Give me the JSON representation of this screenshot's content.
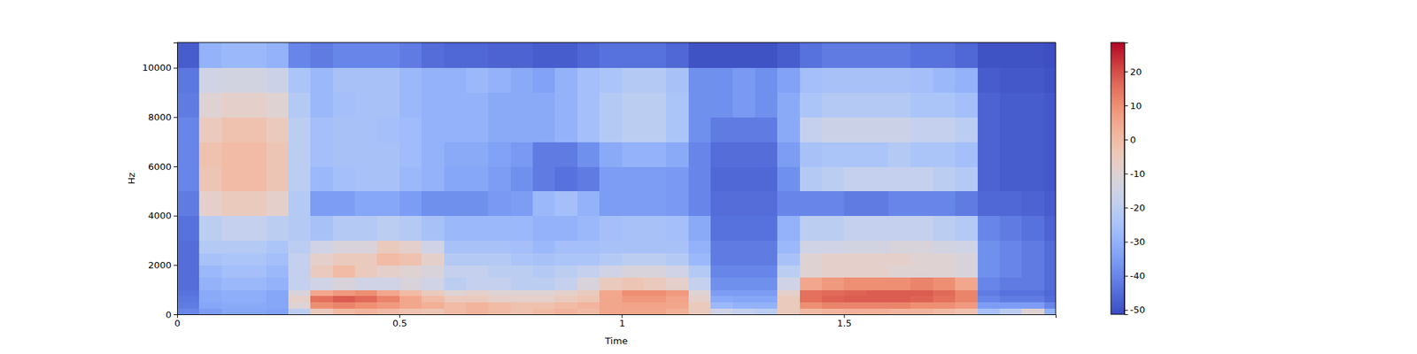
{
  "chart_data": {
    "type": "heatmap",
    "x_label": "Time",
    "y_label": "Hz",
    "xlim": [
      0,
      1.976
    ],
    "ylim": [
      0,
      11025
    ],
    "xticks": [
      0,
      0.5,
      1,
      1.5
    ],
    "yticks": [
      0,
      2000,
      4000,
      6000,
      8000,
      10000
    ],
    "x_edges": [
      0,
      0.05,
      0.1,
      0.15,
      0.2,
      0.25,
      0.3,
      0.35,
      0.4,
      0.45,
      0.5,
      0.55,
      0.6,
      0.65,
      0.7,
      0.75,
      0.8,
      0.85,
      0.9,
      0.95,
      1,
      1.05,
      1.1,
      1.15,
      1.2,
      1.25,
      1.3,
      1.35,
      1.4,
      1.45,
      1.5,
      1.55,
      1.6,
      1.65,
      1.7,
      1.75,
      1.8,
      1.85,
      1.9,
      1.95,
      1.976
    ],
    "y_edges": [
      0,
      250,
      500,
      750,
      1000,
      1500,
      2000,
      2500,
      3000,
      4000,
      5000,
      6000,
      7000,
      8000,
      9000,
      10000,
      11025
    ],
    "values": [
      [
        -40,
        -35,
        -33,
        -33,
        -34,
        -20,
        -5,
        0,
        2,
        0,
        -2,
        -3,
        0,
        2,
        0,
        -2,
        0,
        2,
        0,
        5,
        5,
        5,
        3,
        -5,
        -15,
        -18,
        -20,
        -5,
        0,
        2,
        3,
        3,
        2,
        2,
        0,
        -2,
        -25,
        -20,
        -10,
        -30
      ],
      [
        -42,
        -33,
        -32,
        -32,
        -33,
        -10,
        10,
        12,
        10,
        8,
        5,
        3,
        0,
        2,
        0,
        -2,
        -2,
        0,
        2,
        5,
        6,
        6,
        5,
        -5,
        -28,
        -30,
        -30,
        -5,
        10,
        12,
        12,
        12,
        12,
        10,
        10,
        8,
        -35,
        -35,
        -35,
        -40
      ],
      [
        -43,
        -32,
        -31,
        -31,
        -33,
        -8,
        15,
        18,
        16,
        12,
        5,
        0,
        -5,
        -5,
        -8,
        -8,
        -8,
        -5,
        -3,
        5,
        8,
        8,
        6,
        -8,
        -32,
        -33,
        -33,
        -5,
        15,
        17,
        18,
        18,
        18,
        17,
        15,
        12,
        -40,
        -42,
        -42,
        -45
      ],
      [
        -44,
        -32,
        -31,
        -31,
        -33,
        -12,
        5,
        8,
        10,
        5,
        0,
        -5,
        -10,
        -8,
        -10,
        -10,
        -10,
        -8,
        -5,
        5,
        10,
        10,
        8,
        -10,
        -35,
        -35,
        -35,
        -8,
        15,
        16,
        17,
        18,
        18,
        18,
        16,
        12,
        -42,
        -44,
        -44,
        -46
      ],
      [
        -45,
        -30,
        -28,
        -28,
        -30,
        -18,
        -15,
        -12,
        -15,
        -15,
        -12,
        -15,
        -20,
        -18,
        -18,
        -20,
        -20,
        -18,
        -12,
        -5,
        -3,
        -5,
        -8,
        -18,
        -38,
        -38,
        -38,
        -15,
        5,
        8,
        10,
        10,
        10,
        12,
        10,
        5,
        -40,
        -42,
        -42,
        -45
      ],
      [
        -45,
        -28,
        -26,
        -26,
        -28,
        -18,
        -5,
        0,
        -5,
        -8,
        -10,
        -12,
        -18,
        -18,
        -20,
        -20,
        -22,
        -20,
        -18,
        -15,
        -12,
        -12,
        -15,
        -22,
        -40,
        -40,
        -40,
        -20,
        -10,
        -8,
        -8,
        -8,
        -10,
        -10,
        -10,
        -12,
        -38,
        -40,
        -42,
        -45
      ],
      [
        -45,
        -25,
        -24,
        -24,
        -26,
        -18,
        -8,
        -5,
        -5,
        0,
        -2,
        -8,
        -22,
        -22,
        -22,
        -24,
        -25,
        -24,
        -24,
        -22,
        -20,
        -20,
        -22,
        -28,
        -42,
        -42,
        -42,
        -25,
        -10,
        -8,
        -8,
        -8,
        -8,
        -10,
        -10,
        -12,
        -38,
        -40,
        -42,
        -45
      ],
      [
        -45,
        -22,
        -22,
        -22,
        -24,
        -20,
        -15,
        -12,
        -12,
        -5,
        -8,
        -15,
        -25,
        -25,
        -25,
        -26,
        -28,
        -26,
        -26,
        -25,
        -25,
        -25,
        -25,
        -30,
        -42,
        -42,
        -42,
        -28,
        -15,
        -15,
        -14,
        -14,
        -12,
        -12,
        -14,
        -15,
        -38,
        -40,
        -42,
        -45
      ],
      [
        -44,
        -20,
        -18,
        -18,
        -20,
        -22,
        -25,
        -22,
        -22,
        -20,
        -22,
        -25,
        -28,
        -28,
        -28,
        -28,
        -30,
        -30,
        -28,
        -26,
        -25,
        -25,
        -26,
        -32,
        -44,
        -44,
        -44,
        -30,
        -20,
        -20,
        -18,
        -18,
        -18,
        -18,
        -20,
        -22,
        -40,
        -42,
        -44,
        -47
      ],
      [
        -42,
        -8,
        -5,
        -5,
        -8,
        -22,
        -35,
        -35,
        -33,
        -33,
        -35,
        -38,
        -38,
        -38,
        -36,
        -35,
        -28,
        -26,
        -30,
        -35,
        -35,
        -35,
        -36,
        -40,
        -45,
        -45,
        -45,
        -40,
        -40,
        -40,
        -42,
        -42,
        -40,
        -40,
        -40,
        -42,
        -46,
        -46,
        -47,
        -48
      ],
      [
        -40,
        -3,
        0,
        0,
        -3,
        -20,
        -28,
        -26,
        -25,
        -25,
        -28,
        -30,
        -33,
        -33,
        -35,
        -38,
        -42,
        -44,
        -42,
        -35,
        -35,
        -35,
        -36,
        -40,
        -46,
        -46,
        -46,
        -38,
        -22,
        -20,
        -18,
        -18,
        -18,
        -18,
        -20,
        -22,
        -47,
        -48,
        -48,
        -49
      ],
      [
        -40,
        -2,
        0,
        0,
        -3,
        -20,
        -26,
        -25,
        -25,
        -25,
        -27,
        -30,
        -32,
        -32,
        -34,
        -36,
        -42,
        -42,
        -38,
        -32,
        -30,
        -30,
        -32,
        -40,
        -45,
        -45,
        -45,
        -35,
        -25,
        -24,
        -24,
        -24,
        -22,
        -24,
        -24,
        -26,
        -47,
        -48,
        -48,
        -49
      ],
      [
        -40,
        -5,
        -2,
        -2,
        -5,
        -20,
        -26,
        -25,
        -25,
        -26,
        -27,
        -30,
        -30,
        -30,
        -32,
        -32,
        -32,
        -30,
        -26,
        -22,
        -20,
        -20,
        -24,
        -38,
        -42,
        -42,
        -42,
        -32,
        -18,
        -16,
        -16,
        -16,
        -16,
        -18,
        -18,
        -20,
        -47,
        -48,
        -48,
        -49
      ],
      [
        -42,
        -10,
        -8,
        -8,
        -10,
        -22,
        -28,
        -26,
        -25,
        -25,
        -28,
        -30,
        -30,
        -30,
        -32,
        -32,
        -32,
        -30,
        -26,
        -22,
        -20,
        -20,
        -24,
        -38,
        -38,
        -36,
        -38,
        -32,
        -24,
        -22,
        -22,
        -22,
        -22,
        -24,
        -24,
        -26,
        -47,
        -48,
        -48,
        -49
      ],
      [
        -43,
        -15,
        -14,
        -14,
        -16,
        -24,
        -28,
        -25,
        -25,
        -25,
        -28,
        -30,
        -30,
        -28,
        -30,
        -32,
        -34,
        -30,
        -26,
        -24,
        -22,
        -22,
        -25,
        -38,
        -38,
        -36,
        -38,
        -34,
        -26,
        -25,
        -25,
        -25,
        -25,
        -26,
        -28,
        -30,
        -48,
        -49,
        -49,
        -50
      ],
      [
        -48,
        -30,
        -28,
        -28,
        -30,
        -40,
        -42,
        -40,
        -40,
        -40,
        -42,
        -45,
        -46,
        -46,
        -47,
        -47,
        -48,
        -48,
        -46,
        -44,
        -44,
        -44,
        -46,
        -50,
        -50,
        -50,
        -50,
        -48,
        -44,
        -42,
        -42,
        -42,
        -42,
        -44,
        -44,
        -46,
        -50,
        -50,
        -50,
        -51
      ]
    ],
    "colorbar": {
      "range": [
        -51.3,
        28.5
      ],
      "ticks": [
        -50,
        -40,
        -30,
        -20,
        -10,
        0,
        10,
        20
      ]
    }
  }
}
